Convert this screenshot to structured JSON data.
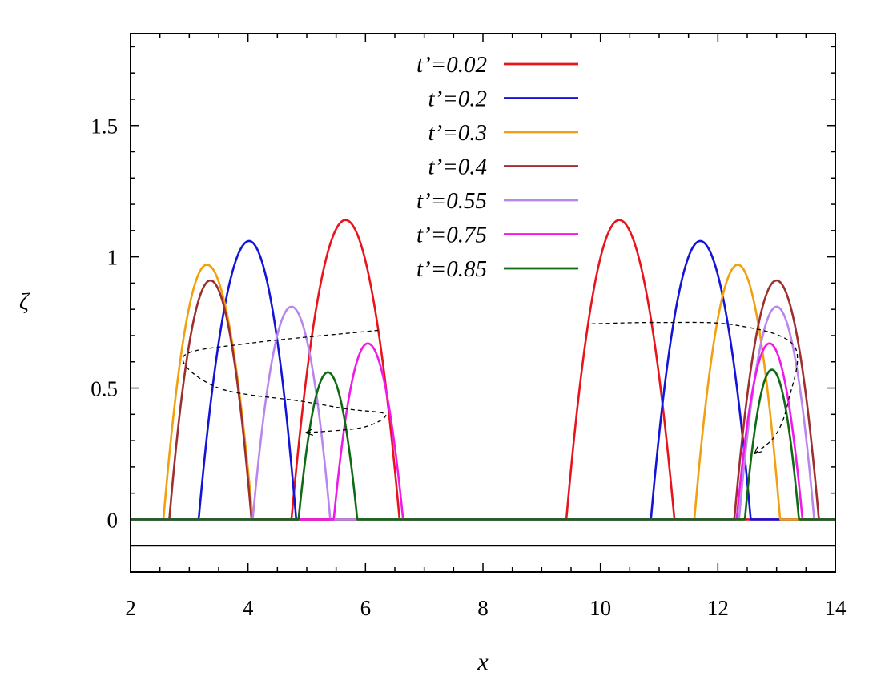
{
  "chart_data": {
    "type": "line",
    "xlabel": "x",
    "ylabel": "ζ",
    "xlim": [
      2,
      14
    ],
    "ylim": [
      -0.2,
      1.85
    ],
    "x_ticks": [
      2,
      4,
      6,
      8,
      10,
      12,
      14
    ],
    "x_tick_labels": [
      "2",
      "4",
      "6",
      "8",
      "10",
      "12",
      "14"
    ],
    "y_ticks": [
      0,
      0.5,
      1,
      1.5
    ],
    "y_tick_labels": [
      "0",
      "0.5",
      "1",
      "1.5"
    ],
    "bed_level": -0.1,
    "legend_position": "top-center",
    "series": [
      {
        "name": "t’=0.02",
        "color": "#e8141b",
        "humps": [
          {
            "x0": 4.74,
            "x1": 6.58,
            "peak": 1.14,
            "xpk": 5.66
          },
          {
            "x0": 9.42,
            "x1": 11.26,
            "peak": 1.14,
            "xpk": 10.32
          }
        ]
      },
      {
        "name": "t’=0.2",
        "color": "#1414d8",
        "humps": [
          {
            "x0": 3.16,
            "x1": 4.82,
            "peak": 1.06,
            "xpk": 4.02
          },
          {
            "x0": 10.86,
            "x1": 12.56,
            "peak": 1.06,
            "xpk": 11.7
          }
        ]
      },
      {
        "name": "t’=0.3",
        "color": "#f2a00f",
        "humps": [
          {
            "x0": 2.56,
            "x1": 4.08,
            "peak": 0.97,
            "xpk": 3.3
          },
          {
            "x0": 11.6,
            "x1": 13.06,
            "peak": 0.97,
            "xpk": 12.34
          }
        ]
      },
      {
        "name": "t’=0.4",
        "color": "#9e2f2f",
        "humps": [
          {
            "x0": 2.66,
            "x1": 4.06,
            "peak": 0.91,
            "xpk": 3.36
          },
          {
            "x0": 12.28,
            "x1": 13.72,
            "peak": 0.91,
            "xpk": 13.0
          }
        ]
      },
      {
        "name": "t’=0.55",
        "color": "#b886ec",
        "humps": [
          {
            "x0": 4.08,
            "x1": 5.4,
            "peak": 0.81,
            "xpk": 4.74
          },
          {
            "x0": 12.36,
            "x1": 13.64,
            "peak": 0.81,
            "xpk": 13.0
          }
        ]
      },
      {
        "name": "t’=0.75",
        "color": "#f018ea",
        "humps": [
          {
            "x0": 5.46,
            "x1": 6.64,
            "peak": 0.67,
            "xpk": 6.04
          },
          {
            "x0": 12.32,
            "x1": 13.44,
            "peak": 0.67,
            "xpk": 12.88
          }
        ]
      },
      {
        "name": "t’=0.85",
        "color": "#0f6a14",
        "humps": [
          {
            "x0": 4.86,
            "x1": 5.86,
            "peak": 0.56,
            "xpk": 5.36
          },
          {
            "x0": 12.46,
            "x1": 13.38,
            "peak": 0.57,
            "xpk": 12.92
          }
        ]
      }
    ],
    "annotations": [
      {
        "type": "dashed-arrow",
        "points": [
          [
            6.22,
            0.72
          ],
          [
            4.0,
            0.67
          ],
          [
            2.9,
            0.62
          ],
          [
            3.5,
            0.5
          ],
          [
            4.9,
            0.45
          ],
          [
            5.7,
            0.42
          ],
          [
            6.34,
            0.4
          ],
          [
            5.95,
            0.35
          ],
          [
            4.98,
            0.33
          ]
        ]
      },
      {
        "type": "dashed-arrow",
        "points": [
          [
            9.85,
            0.745
          ],
          [
            11.0,
            0.75
          ],
          [
            12.3,
            0.74
          ],
          [
            13.3,
            0.66
          ],
          [
            13.2,
            0.45
          ],
          [
            12.98,
            0.32
          ],
          [
            12.62,
            0.25
          ]
        ]
      }
    ]
  }
}
